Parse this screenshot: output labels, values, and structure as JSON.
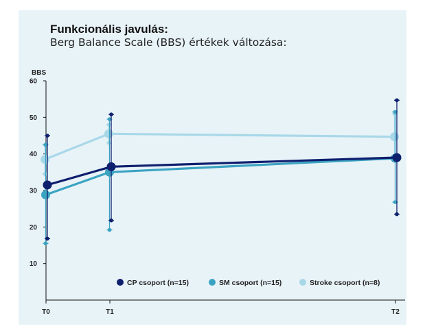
{
  "title": "Funkcionális javulás:",
  "subtitle": "Berg Balance Scale (BBS) értékek változása:",
  "chart_data": {
    "type": "line",
    "ylabel": "BBS",
    "categories": [
      "T0",
      "T1",
      "T2"
    ],
    "ylim": [
      0,
      60
    ],
    "yticks": [
      10,
      20,
      30,
      40,
      50,
      60
    ],
    "grid": false,
    "legend_position": "bottom-right",
    "series": [
      {
        "name": "CP csoport (n=15)",
        "color": "#0e1f6e",
        "values": [
          31.5,
          36.5,
          39
        ],
        "err_low": [
          16.8,
          21.8,
          23.5
        ],
        "err_high": [
          45,
          50.8,
          54.7
        ]
      },
      {
        "name": "SM csoport (n=15)",
        "color": "#3ba3c2",
        "values": [
          28.8,
          35,
          38.8
        ],
        "err_low": [
          15.5,
          19.2,
          26.8
        ],
        "err_high": [
          42.5,
          49.5,
          51.5
        ]
      },
      {
        "name": "Stroke csoport (n=8)",
        "color": "#a8d8e8",
        "values": [
          38.5,
          45.5,
          44.7
        ],
        "err_low": [
          34.5,
          43,
          38.5
        ],
        "err_high": [
          42.5,
          48,
          51
        ]
      }
    ]
  }
}
